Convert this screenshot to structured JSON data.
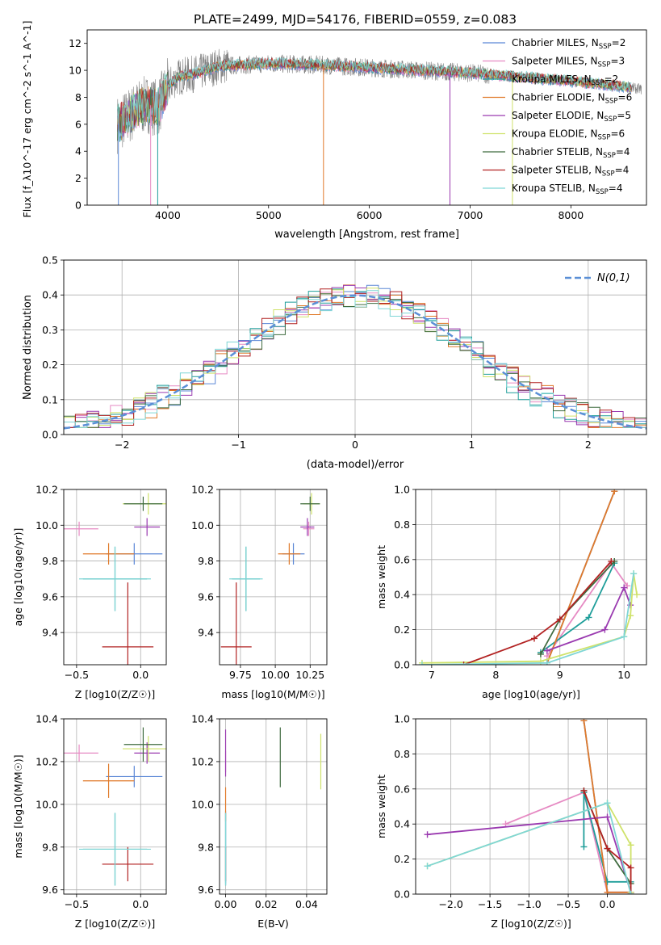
{
  "figure": {
    "title": "PLATE=2499, MJD=54176, FIBERID=0559, z=0.083"
  },
  "colors": {
    "Chabrier MILES": "#5b87d6",
    "Salpeter MILES": "#e68ac3",
    "Kroupa MILES": "#1f9e9a",
    "Chabrier ELODIE": "#e07a2a",
    "Salpeter ELODIE": "#9a3ab0",
    "Kroupa ELODIE": "#cfe26a",
    "Chabrier STELIB": "#3f6b3f",
    "Salpeter STELIB": "#b22222",
    "Kroupa STELIB": "#7fd6d6"
  },
  "chart_data": [
    {
      "id": "spectrum",
      "type": "line",
      "xlabel": "wavelength [Angstrom, rest frame]",
      "ylabel": "Flux [f_λ10^-17 erg cm^-2 s^-1 A^-1]",
      "xlim": [
        3200,
        8750
      ],
      "ylim": [
        0,
        13
      ],
      "xticks": [
        4000,
        5000,
        6000,
        7000,
        8000
      ],
      "yticks": [
        0,
        2,
        4,
        6,
        8,
        10,
        12
      ],
      "grid": false,
      "legend_position": "top-right",
      "data_color": "#808080",
      "series": [
        {
          "name": "Chabrier MILES, N_SSP=2",
          "color": "#5b87d6"
        },
        {
          "name": "Salpeter MILES, N_SSP=3",
          "color": "#e68ac3"
        },
        {
          "name": "Kroupa MILES, N_SSP=2",
          "color": "#1f9e9a"
        },
        {
          "name": "Chabrier ELODIE, N_SSP=6",
          "color": "#e07a2a"
        },
        {
          "name": "Salpeter ELODIE, N_SSP=5",
          "color": "#9a3ab0"
        },
        {
          "name": "Kroupa ELODIE, N_SSP=6",
          "color": "#cfe26a"
        },
        {
          "name": "Chabrier STELIB, N_SSP=4",
          "color": "#3f6b3f"
        },
        {
          "name": "Salpeter STELIB, N_SSP=4",
          "color": "#b22222"
        },
        {
          "name": "Kroupa STELIB, N_SSP=4",
          "color": "#7fd6d6"
        }
      ],
      "legend_entries": [
        {
          "base": "Chabrier MILES, N",
          "sub": "SSP",
          "tail": "=2"
        },
        {
          "base": "Salpeter MILES, N",
          "sub": "SSP",
          "tail": "=3"
        },
        {
          "base": "Kroupa MILES, N",
          "sub": "SSP",
          "tail": "=2"
        },
        {
          "base": "Chabrier ELODIE, N",
          "sub": "SSP",
          "tail": "=6"
        },
        {
          "base": "Salpeter ELODIE, N",
          "sub": "SSP",
          "tail": "=5"
        },
        {
          "base": "Kroupa ELODIE, N",
          "sub": "SSP",
          "tail": "=6"
        },
        {
          "base": "Chabrier STELIB, N",
          "sub": "SSP",
          "tail": "=4"
        },
        {
          "base": "Salpeter STELIB, N",
          "sub": "SSP",
          "tail": "=4"
        },
        {
          "base": "Kroupa STELIB, N",
          "sub": "SSP",
          "tail": "=4"
        }
      ],
      "continuum": {
        "x": [
          3500,
          3600,
          3700,
          3800,
          3900,
          4000,
          4100,
          4300,
          4500,
          5000,
          5500,
          6000,
          6500,
          7000,
          7500,
          8000,
          8500,
          8700
        ],
        "y": [
          6.0,
          6.5,
          7.2,
          7.5,
          7.2,
          8.8,
          9.5,
          9.8,
          10.3,
          10.5,
          10.4,
          10.2,
          10.0,
          9.8,
          9.5,
          9.2,
          8.8,
          8.6
        ]
      },
      "spikes": [
        {
          "x": 3510,
          "y": 0
        },
        {
          "x": 3830,
          "y": 0
        },
        {
          "x": 3900,
          "y": 0
        },
        {
          "x": 5545,
          "y": 0
        },
        {
          "x": 6800,
          "y": 0
        },
        {
          "x": 7420,
          "y": 0
        }
      ]
    },
    {
      "id": "residuals",
      "type": "step",
      "xlabel": "(data-model)/error",
      "ylabel": "Normed distribution",
      "xlim": [
        -2.5,
        2.5
      ],
      "ylim": [
        0,
        0.5
      ],
      "xticks": [
        -2,
        -1,
        0,
        1,
        2
      ],
      "xtick_labels": [
        "−2",
        "−1",
        "0",
        "1",
        "2"
      ],
      "yticks": [
        0.0,
        0.1,
        0.2,
        0.3,
        0.4,
        0.5
      ],
      "ytick_labels": [
        "0.0",
        "0.1",
        "0.2",
        "0.3",
        "0.4",
        "0.5"
      ],
      "grid": true,
      "legend_position": "top-right",
      "legend_label": "N(0,1)",
      "gauss_color": "#5b8fd6",
      "bin_width": 0.1
    },
    {
      "id": "age-vs-Z",
      "type": "errorbar",
      "xlabel": "Z [log10(Z/Z☉)]",
      "ylabel": "age  [log10(age/yr)]",
      "xlim": [
        -0.6,
        0.2
      ],
      "ylim": [
        9.22,
        10.2
      ],
      "xticks": [
        -0.5,
        0.0
      ],
      "xtick_labels": [
        "−0.5",
        "0.0"
      ],
      "yticks": [
        9.4,
        9.6,
        9.8,
        10.0,
        10.2
      ],
      "ytick_labels": [
        "9.4",
        "9.6",
        "9.8",
        "10.0",
        "10.2"
      ],
      "grid": true,
      "points": [
        {
          "series": "Chabrier MILES",
          "x": -0.05,
          "y": 9.84,
          "xe": 0.22,
          "ye": 0.06
        },
        {
          "series": "Salpeter MILES",
          "x": -0.48,
          "y": 9.98,
          "xe": 0.15,
          "ye": 0.04
        },
        {
          "series": "Kroupa MILES",
          "x": -0.2,
          "y": 9.7,
          "xe": 0.25,
          "ye": 0.18
        },
        {
          "series": "Chabrier ELODIE",
          "x": -0.25,
          "y": 9.84,
          "xe": 0.2,
          "ye": 0.06
        },
        {
          "series": "Salpeter ELODIE",
          "x": 0.05,
          "y": 9.99,
          "xe": 0.1,
          "ye": 0.05
        },
        {
          "series": "Kroupa ELODIE",
          "x": 0.06,
          "y": 10.12,
          "xe": 0.2,
          "ye": 0.06
        },
        {
          "series": "Chabrier STELIB",
          "x": 0.02,
          "y": 10.12,
          "xe": 0.15,
          "ye": 0.04
        },
        {
          "series": "Salpeter STELIB",
          "x": -0.1,
          "y": 9.32,
          "xe": 0.2,
          "ye": 0.36
        },
        {
          "series": "Kroupa STELIB",
          "x": -0.2,
          "y": 9.7,
          "xe": 0.28,
          "ye": 0.18
        }
      ]
    },
    {
      "id": "age-vs-mass",
      "type": "errorbar",
      "xlabel": "mass [log10(M/M☉)]",
      "ylabel": "",
      "xlim": [
        9.6,
        10.37
      ],
      "ylim": [
        9.22,
        10.2
      ],
      "xticks": [
        9.75,
        10.0,
        10.25
      ],
      "xtick_labels": [
        "9.75",
        "10.00",
        "10.25"
      ],
      "yticks": [
        9.4,
        9.6,
        9.8,
        10.0,
        10.2
      ],
      "ytick_labels": [
        "9.4",
        "9.6",
        "9.8",
        "10.0",
        "10.2"
      ],
      "grid": true,
      "points": [
        {
          "series": "Chabrier MILES",
          "x": 10.13,
          "y": 9.84,
          "xe": 0.08,
          "ye": 0.06
        },
        {
          "series": "Salpeter MILES",
          "x": 10.24,
          "y": 9.98,
          "xe": 0.04,
          "ye": 0.04
        },
        {
          "series": "Kroupa MILES",
          "x": 9.79,
          "y": 9.7,
          "xe": 0.1,
          "ye": 0.18
        },
        {
          "series": "Chabrier ELODIE",
          "x": 10.1,
          "y": 9.84,
          "xe": 0.08,
          "ye": 0.06
        },
        {
          "series": "Salpeter ELODIE",
          "x": 10.23,
          "y": 9.99,
          "xe": 0.05,
          "ye": 0.05
        },
        {
          "series": "Kroupa ELODIE",
          "x": 10.26,
          "y": 10.12,
          "xe": 0.06,
          "ye": 0.06
        },
        {
          "series": "Chabrier STELIB",
          "x": 10.25,
          "y": 10.12,
          "xe": 0.07,
          "ye": 0.04
        },
        {
          "series": "Salpeter STELIB",
          "x": 9.72,
          "y": 9.32,
          "xe": 0.11,
          "ye": 0.36
        },
        {
          "series": "Kroupa STELIB",
          "x": 9.79,
          "y": 9.7,
          "xe": 0.12,
          "ye": 0.18
        }
      ]
    },
    {
      "id": "weight-vs-age",
      "type": "line",
      "xlabel": "age  [log10(age/yr)]",
      "ylabel": "mass weight",
      "xlim": [
        6.75,
        10.35
      ],
      "ylim": [
        0,
        1.0
      ],
      "xticks": [
        7,
        8,
        9,
        10
      ],
      "xtick_labels": [
        "7",
        "8",
        "9",
        "10"
      ],
      "yticks": [
        0.0,
        0.2,
        0.4,
        0.6,
        0.8,
        1.0
      ],
      "ytick_labels": [
        "0.0",
        "0.2",
        "0.4",
        "0.6",
        "0.8",
        "1.0"
      ],
      "grid": true,
      "series": [
        {
          "series": "Chabrier MILES",
          "x": [
            8.8,
            9.85
          ],
          "y": [
            0.01,
            0.99
          ]
        },
        {
          "series": "Salpeter MILES",
          "x": [
            8.8,
            9.8,
            10.05
          ],
          "y": [
            0.05,
            0.58,
            0.45
          ]
        },
        {
          "series": "Kroupa MILES",
          "x": [
            8.7,
            9.45,
            9.85
          ],
          "y": [
            0.07,
            0.27,
            0.58
          ]
        },
        {
          "series": "Chabrier ELODIE",
          "x": [
            8.8,
            9.85
          ],
          "y": [
            0.01,
            0.99
          ]
        },
        {
          "series": "Salpeter ELODIE",
          "x": [
            8.8,
            9.7,
            10.0,
            10.1
          ],
          "y": [
            0.08,
            0.2,
            0.44,
            0.34
          ]
        },
        {
          "series": "Kroupa ELODIE",
          "x": [
            6.85,
            8.7,
            10.0,
            10.1,
            10.15,
            10.2
          ],
          "y": [
            0.01,
            0.02,
            0.16,
            0.28,
            0.52,
            0.4
          ]
        },
        {
          "series": "Chabrier STELIB",
          "x": [
            8.7,
            9.0,
            9.85
          ],
          "y": [
            0.06,
            0.26,
            0.59
          ]
        },
        {
          "series": "Salpeter STELIB",
          "x": [
            7.5,
            8.6,
            9.0,
            9.8
          ],
          "y": [
            0.0,
            0.15,
            0.26,
            0.59
          ]
        },
        {
          "series": "Kroupa STELIB",
          "x": [
            6.85,
            8.8,
            10.0,
            10.15
          ],
          "y": [
            0.0,
            0.01,
            0.16,
            0.52
          ]
        }
      ]
    },
    {
      "id": "mass-vs-Z",
      "type": "errorbar",
      "xlabel": "Z [log10(Z/Z☉)]",
      "ylabel": "mass [log10(M/M☉)]",
      "xlim": [
        -0.6,
        0.2
      ],
      "ylim": [
        9.58,
        10.4
      ],
      "xticks": [
        -0.5,
        0.0
      ],
      "xtick_labels": [
        "−0.5",
        "0.0"
      ],
      "yticks": [
        9.6,
        9.8,
        10.0,
        10.2,
        10.4
      ],
      "ytick_labels": [
        "9.6",
        "9.8",
        "10.0",
        "10.2",
        "10.4"
      ],
      "grid": true,
      "points": [
        {
          "series": "Chabrier MILES",
          "x": -0.05,
          "y": 10.13,
          "xe": 0.22,
          "ye": 0.05
        },
        {
          "series": "Salpeter MILES",
          "x": -0.48,
          "y": 10.24,
          "xe": 0.15,
          "ye": 0.04
        },
        {
          "series": "Kroupa MILES",
          "x": -0.2,
          "y": 9.79,
          "xe": 0.25,
          "ye": 0.17
        },
        {
          "series": "Chabrier ELODIE",
          "x": -0.25,
          "y": 10.11,
          "xe": 0.2,
          "ye": 0.08
        },
        {
          "series": "Salpeter ELODIE",
          "x": 0.05,
          "y": 10.24,
          "xe": 0.1,
          "ye": 0.05
        },
        {
          "series": "Kroupa ELODIE",
          "x": 0.06,
          "y": 10.26,
          "xe": 0.2,
          "ye": 0.06
        },
        {
          "series": "Chabrier STELIB",
          "x": 0.02,
          "y": 10.28,
          "xe": 0.15,
          "ye": 0.08
        },
        {
          "series": "Salpeter STELIB",
          "x": -0.1,
          "y": 9.72,
          "xe": 0.2,
          "ye": 0.08
        },
        {
          "series": "Kroupa STELIB",
          "x": -0.2,
          "y": 9.79,
          "xe": 0.28,
          "ye": 0.17
        }
      ]
    },
    {
      "id": "mass-vs-EBV",
      "type": "errorbar",
      "xlabel": "E(B-V)",
      "ylabel": "",
      "xlim": [
        -0.003,
        0.05
      ],
      "ylim": [
        9.58,
        10.4
      ],
      "xticks": [
        0.0,
        0.02,
        0.04
      ],
      "xtick_labels": [
        "0.00",
        "0.02",
        "0.04"
      ],
      "yticks": [
        9.6,
        9.8,
        10.0,
        10.2,
        10.4
      ],
      "ytick_labels": [
        "9.6",
        "9.8",
        "10.0",
        "10.2",
        "10.4"
      ],
      "grid": true,
      "points": [
        {
          "series": "Chabrier MILES",
          "x": 0.0,
          "y": 9.8,
          "xe": 0,
          "ye": 0.17
        },
        {
          "series": "Salpeter MILES",
          "x": 0.0,
          "y": 10.2,
          "xe": 0,
          "ye": 0.05
        },
        {
          "series": "Kroupa MILES",
          "x": 0.0,
          "y": 9.79,
          "xe": 0,
          "ye": 0.17
        },
        {
          "series": "Chabrier ELODIE",
          "x": 0.0,
          "y": 10.0,
          "xe": 0,
          "ye": 0.08
        },
        {
          "series": "Salpeter ELODIE",
          "x": 0.0,
          "y": 10.24,
          "xe": 0,
          "ye": 0.11
        },
        {
          "series": "Kroupa ELODIE",
          "x": 0.047,
          "y": 10.2,
          "xe": 0,
          "ye": 0.13
        },
        {
          "series": "Chabrier STELIB",
          "x": 0.027,
          "y": 10.22,
          "xe": 0,
          "ye": 0.14
        },
        {
          "series": "Salpeter STELIB",
          "x": 0.0,
          "y": 9.72,
          "xe": 0,
          "ye": 0.08
        },
        {
          "series": "Kroupa STELIB",
          "x": 0.0,
          "y": 9.79,
          "xe": 0,
          "ye": 0.17
        }
      ]
    },
    {
      "id": "weight-vs-Z",
      "type": "line",
      "xlabel": "Z [log10(Z/Z☉)]",
      "ylabel": "mass weight",
      "xlim": [
        -2.45,
        0.5
      ],
      "ylim": [
        0,
        1.0
      ],
      "xticks": [
        -2.0,
        -1.5,
        -1.0,
        -0.5,
        0.0
      ],
      "xtick_labels": [
        "−2.0",
        "−1.5",
        "−1.0",
        "−0.5",
        "0.0"
      ],
      "yticks": [
        0.0,
        0.2,
        0.4,
        0.6,
        0.8,
        1.0
      ],
      "ytick_labels": [
        "0.0",
        "0.2",
        "0.4",
        "0.6",
        "0.8",
        "1.0"
      ],
      "grid": true,
      "series": [
        {
          "series": "Chabrier MILES",
          "x": [
            -0.3,
            0.0,
            0.3
          ],
          "y": [
            0.99,
            0.01,
            0.01
          ]
        },
        {
          "series": "Salpeter MILES",
          "x": [
            -1.3,
            -0.3,
            0.0,
            0.3
          ],
          "y": [
            0.4,
            0.58,
            0.01,
            0.01
          ]
        },
        {
          "series": "Kroupa MILES",
          "x": [
            -0.3,
            -0.3,
            0.0,
            0.3
          ],
          "y": [
            0.27,
            0.58,
            0.07,
            0.07
          ]
        },
        {
          "series": "Chabrier ELODIE",
          "x": [
            -0.3,
            0.0,
            0.3
          ],
          "y": [
            0.99,
            0.01,
            0.01
          ]
        },
        {
          "series": "Salpeter ELODIE",
          "x": [
            -2.3,
            0.0,
            0.3
          ],
          "y": [
            0.34,
            0.44,
            0.01
          ]
        },
        {
          "series": "Kroupa ELODIE",
          "x": [
            -2.3,
            0.0,
            0.3,
            0.3
          ],
          "y": [
            0.16,
            0.52,
            0.28,
            0.01
          ]
        },
        {
          "series": "Chabrier STELIB",
          "x": [
            -0.3,
            0.0,
            0.3
          ],
          "y": [
            0.59,
            0.26,
            0.06
          ]
        },
        {
          "series": "Salpeter STELIB",
          "x": [
            -0.3,
            0.0,
            0.3,
            0.3
          ],
          "y": [
            0.59,
            0.26,
            0.15,
            0.0
          ]
        },
        {
          "series": "Kroupa STELIB",
          "x": [
            -2.3,
            0.0,
            0.3
          ],
          "y": [
            0.16,
            0.52,
            0.0
          ]
        }
      ]
    }
  ]
}
